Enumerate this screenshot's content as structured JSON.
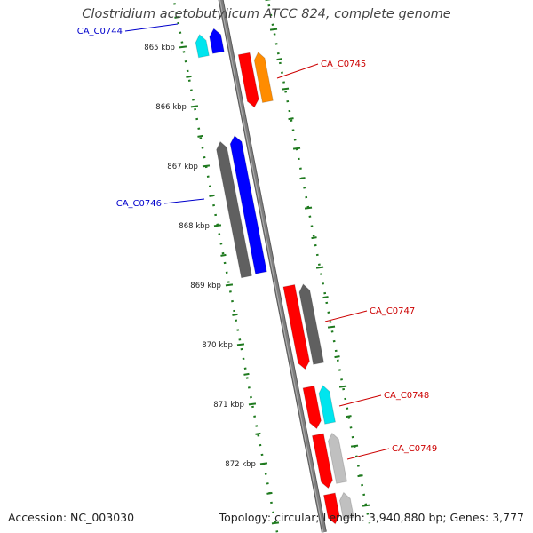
{
  "title": "Clostridium acetobutylicum ATCC 824, complete genome",
  "footer": {
    "accession": "Accession: NC_003030",
    "summary": "Topology: circular; Length: 3,940,880 bp; Genes: 3,777"
  },
  "colors": {
    "backbone": "#808080",
    "dotted_track": "#1f7a1f",
    "forward_label": "#cc0000",
    "reverse_label": "#0000cc",
    "red": "#ff0000",
    "orange": "#ff8c00",
    "blue": "#0000ff",
    "cyan": "#00e5ee",
    "gray": "#606060",
    "light_gray": "#c0c0c0"
  },
  "scale": {
    "ticks": [
      {
        "label": "865 kbp",
        "kbp": 865
      },
      {
        "label": "866 kbp",
        "kbp": 866
      },
      {
        "label": "867 kbp",
        "kbp": 867
      },
      {
        "label": "868 kbp",
        "kbp": 868
      },
      {
        "label": "869 kbp",
        "kbp": 869
      },
      {
        "label": "870 kbp",
        "kbp": 870
      },
      {
        "label": "871 kbp",
        "kbp": 871
      },
      {
        "label": "872 kbp",
        "kbp": 872
      }
    ]
  },
  "genes": [
    {
      "label": "CA_C0744",
      "strand": "reverse",
      "start_kbp": 864.8,
      "end_kbp": 865.2,
      "color": "blue",
      "companion_color": "cyan"
    },
    {
      "label": "CA_C0745",
      "strand": "forward",
      "start_kbp": 865.3,
      "end_kbp": 866.2,
      "color": "red",
      "companion_color": "orange"
    },
    {
      "label": "CA_C0746",
      "strand": "reverse",
      "start_kbp": 866.6,
      "end_kbp": 868.9,
      "color": "blue",
      "companion_color": "gray"
    },
    {
      "label": "CA_C0747",
      "strand": "forward",
      "start_kbp": 869.2,
      "end_kbp": 870.6,
      "color": "red",
      "companion_color": "gray"
    },
    {
      "label": "CA_C0748",
      "strand": "forward",
      "start_kbp": 870.9,
      "end_kbp": 871.6,
      "color": "red",
      "companion_color": "cyan"
    },
    {
      "label": "CA_C0749",
      "strand": "forward",
      "start_kbp": 871.7,
      "end_kbp": 872.6,
      "color": "red",
      "companion_color": "light_gray"
    },
    {
      "label": "",
      "strand": "forward",
      "start_kbp": 872.7,
      "end_kbp": 873.2,
      "color": "red",
      "companion_color": "light_gray"
    }
  ]
}
